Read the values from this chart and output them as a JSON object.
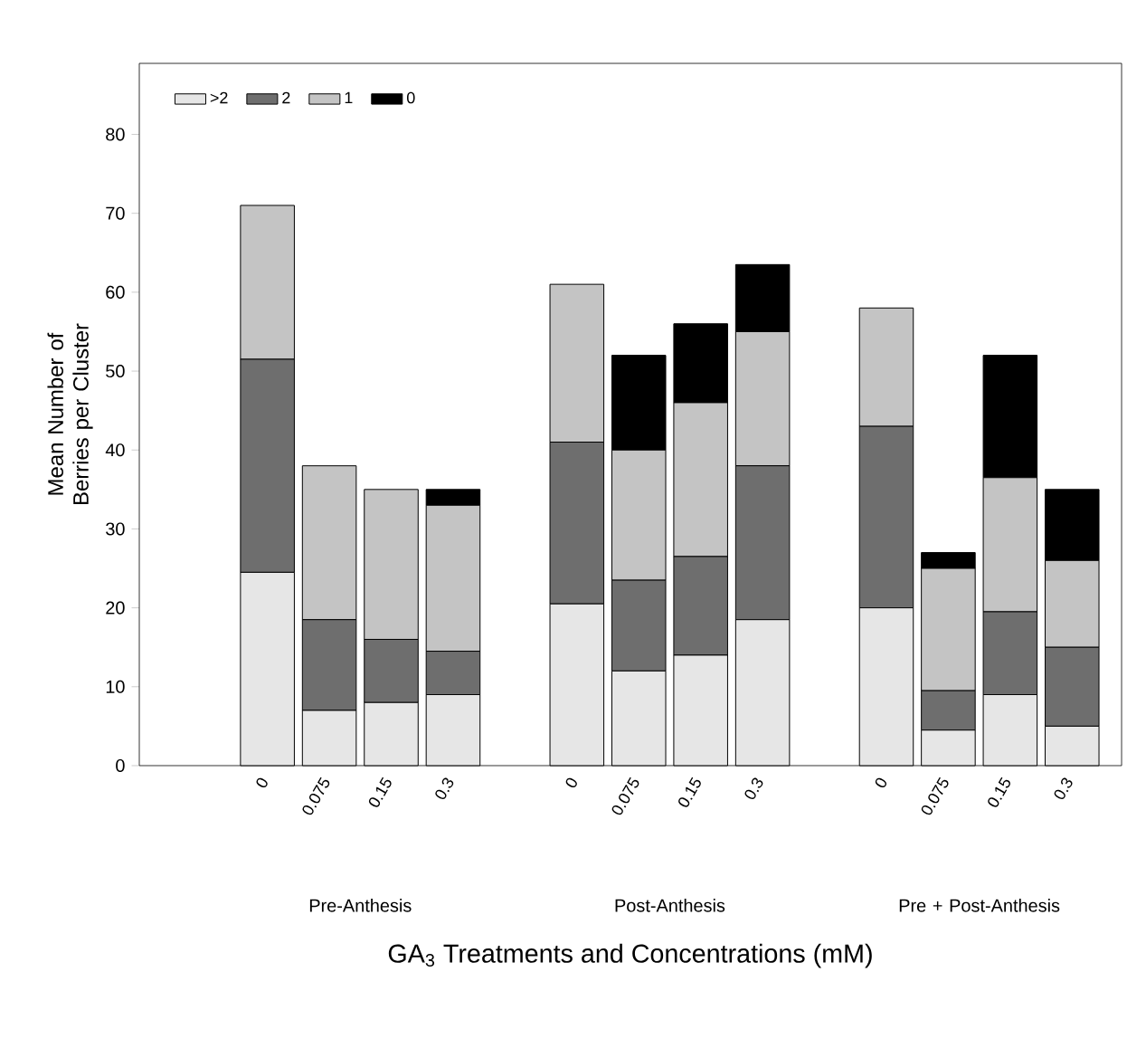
{
  "chart_data": {
    "type": "bar",
    "stacked": true,
    "categories": [
      "0",
      "0.075",
      "0.15",
      "0.3",
      null,
      "0",
      "0.075",
      "0.15",
      "0.3",
      null,
      "0",
      "0.075",
      "0.15",
      "0.3"
    ],
    "series": [
      {
        "name": ">2",
        "color": "#e6e6e6",
        "values": [
          24.5,
          7,
          8,
          9,
          null,
          20.5,
          12,
          14,
          18.5,
          null,
          20,
          4.5,
          9,
          5
        ]
      },
      {
        "name": "2",
        "color": "#6e6e6e",
        "values": [
          27,
          11.5,
          8,
          5.5,
          null,
          20.5,
          11.5,
          12.5,
          19.5,
          null,
          23,
          5,
          10.5,
          10
        ]
      },
      {
        "name": "1",
        "color": "#c4c4c4",
        "values": [
          19.5,
          19.5,
          19,
          18.5,
          null,
          20,
          16.5,
          19.5,
          17,
          null,
          15,
          15.5,
          17,
          11
        ]
      },
      {
        "name": "0",
        "color": "#000000",
        "values": [
          0,
          0,
          0,
          2,
          null,
          0,
          12,
          10,
          8.5,
          null,
          0,
          2,
          15.5,
          9
        ]
      }
    ],
    "ylabel": "Mean Number of Berries per Cluster",
    "xlabel": "GA$_{3}$ Treatments and Concentrations (mM)",
    "annotations": [
      "Pre-Anthesis",
      "Post-Anthesis",
      "Pre + Post-Anthesis"
    ],
    "ylim": [
      0,
      89
    ],
    "yticks": [
      0,
      10,
      20,
      30,
      40,
      50,
      60,
      70,
      80
    ],
    "legend": "top left",
    "grid": false
  }
}
